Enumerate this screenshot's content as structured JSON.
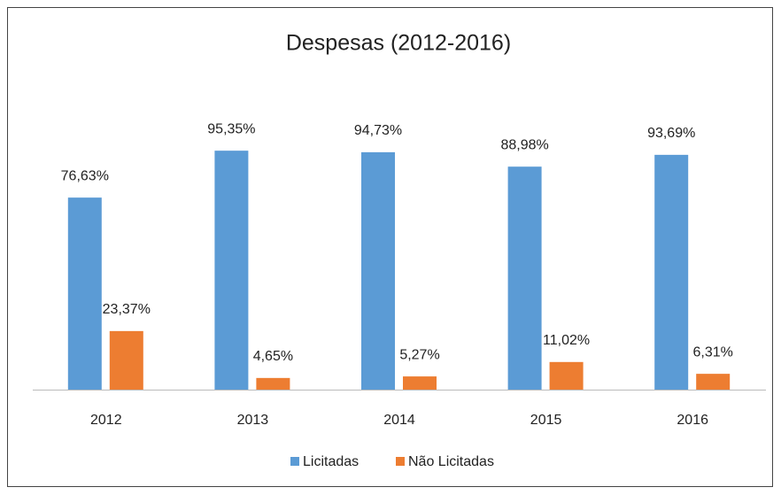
{
  "chart_data": {
    "type": "bar",
    "title": "Despesas (2012-2016)",
    "categories": [
      "2012",
      "2013",
      "2014",
      "2015",
      "2016"
    ],
    "series": [
      {
        "name": "Licitadas",
        "color": "#5b9bd5",
        "values": [
          76.63,
          95.35,
          94.73,
          88.98,
          93.69
        ],
        "value_labels": [
          "76,63%",
          "95,35%",
          "94,73%",
          "88,98%",
          "93,69%"
        ]
      },
      {
        "name": "Não Licitadas",
        "color": "#ed7d31",
        "values": [
          23.37,
          4.65,
          5.27,
          11.02,
          6.31
        ],
        "value_labels": [
          "23,37%",
          "4,65%",
          "5,27%",
          "11,02%",
          "6,31%"
        ]
      }
    ],
    "legend": "bottom"
  }
}
